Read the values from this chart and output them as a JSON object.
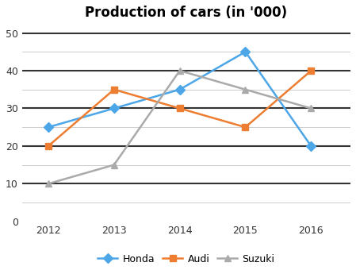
{
  "title": "Production of cars (in '000)",
  "years": [
    2012,
    2013,
    2014,
    2015,
    2016
  ],
  "series": {
    "Honda": {
      "values": [
        25,
        30,
        35,
        45,
        20
      ],
      "color": "#4DA6E8",
      "marker": "D",
      "markercolor": "#4DA6E8"
    },
    "Audi": {
      "values": [
        20,
        35,
        30,
        25,
        40
      ],
      "color": "#ED7D31",
      "marker": "s",
      "markercolor": "#ED7D31"
    },
    "Suzuki": {
      "values": [
        10,
        15,
        40,
        35,
        30
      ],
      "color": "#AAAAAA",
      "marker": "^",
      "markercolor": "#AAAAAA"
    }
  },
  "ylim": [
    0,
    52
  ],
  "yticks": [
    0,
    10,
    20,
    30,
    40,
    50
  ],
  "major_yticks": [
    10,
    20,
    30,
    40,
    50
  ],
  "minor_yticks": [
    5,
    15,
    25,
    35,
    45
  ],
  "background_color": "#FFFFFF",
  "major_grid_color": "#333333",
  "minor_grid_color": "#CCCCCC",
  "legend_labels": [
    "Honda",
    "Audi",
    "Suzuki"
  ],
  "title_fontsize": 12,
  "tick_fontsize": 9,
  "legend_fontsize": 9,
  "linewidth": 1.8,
  "markersize": 6
}
